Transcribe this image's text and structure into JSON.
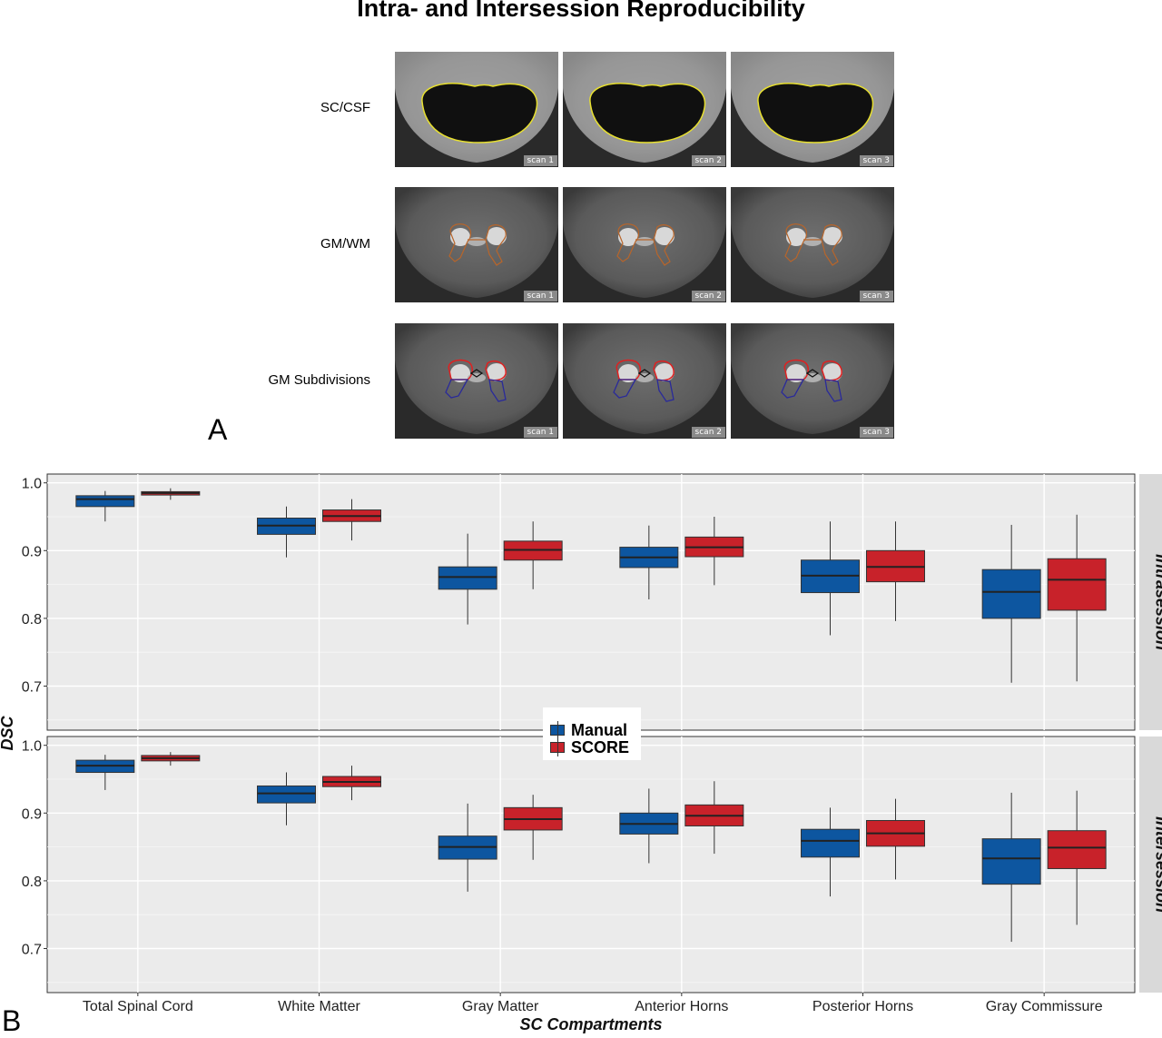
{
  "figure": {
    "title": "Intra- and Intersession Reproducibility",
    "panel_a_letter": "A",
    "panel_b_letter": "B"
  },
  "panel_a": {
    "rows": [
      {
        "label": "SC/CSF",
        "scans": [
          "scan 1",
          "scan 2",
          "scan 3"
        ],
        "contour_colors": [
          "#e8e030"
        ]
      },
      {
        "label": "GM/WM",
        "scans": [
          "scan 1",
          "scan 2",
          "scan 3"
        ],
        "contour_colors": [
          "#b8652a"
        ]
      },
      {
        "label": "GM Subdivisions",
        "scans": [
          "scan 1",
          "scan 2",
          "scan 3"
        ],
        "contour_colors": [
          "#e02020",
          "#2a2a9a",
          "#111111"
        ]
      }
    ]
  },
  "chart_data": {
    "type": "boxplot",
    "xlabel": "SC Compartments",
    "ylabel": "DSC",
    "categories": [
      "Total Spinal Cord",
      "White Matter",
      "Gray Matter",
      "Anterior Horns",
      "Posterior Horns",
      "Gray Commissure"
    ],
    "yticks": [
      "0.7",
      "0.8",
      "0.9",
      "1.0"
    ],
    "ylim": [
      0.635,
      1.013
    ],
    "grid": true,
    "legend": {
      "position": "center-between-facets",
      "entries": [
        "Manual",
        "SCORE"
      ]
    },
    "colors": {
      "Manual": "#0d56a0",
      "SCORE": "#c8222a",
      "panel_bg": "#ebebeb",
      "strip_bg": "#d9d9d9"
    },
    "facets": [
      {
        "name": "Intrasession",
        "series": [
          {
            "name": "Manual",
            "boxes": [
              {
                "min": 0.943,
                "q1": 0.965,
                "median": 0.976,
                "q3": 0.981,
                "max": 0.988
              },
              {
                "min": 0.89,
                "q1": 0.924,
                "median": 0.937,
                "q3": 0.948,
                "max": 0.965
              },
              {
                "min": 0.791,
                "q1": 0.843,
                "median": 0.861,
                "q3": 0.876,
                "max": 0.925
              },
              {
                "min": 0.828,
                "q1": 0.875,
                "median": 0.89,
                "q3": 0.905,
                "max": 0.937
              },
              {
                "min": 0.775,
                "q1": 0.838,
                "median": 0.863,
                "q3": 0.886,
                "max": 0.943
              },
              {
                "min": 0.705,
                "q1": 0.8,
                "median": 0.839,
                "q3": 0.872,
                "max": 0.938
              }
            ]
          },
          {
            "name": "SCORE",
            "boxes": [
              {
                "min": 0.975,
                "q1": 0.982,
                "median": 0.985,
                "q3": 0.987,
                "max": 0.992
              },
              {
                "min": 0.915,
                "q1": 0.943,
                "median": 0.951,
                "q3": 0.96,
                "max": 0.976
              },
              {
                "min": 0.843,
                "q1": 0.886,
                "median": 0.901,
                "q3": 0.914,
                "max": 0.943
              },
              {
                "min": 0.849,
                "q1": 0.891,
                "median": 0.905,
                "q3": 0.92,
                "max": 0.95
              },
              {
                "min": 0.796,
                "q1": 0.854,
                "median": 0.876,
                "q3": 0.9,
                "max": 0.943
              },
              {
                "min": 0.707,
                "q1": 0.812,
                "median": 0.857,
                "q3": 0.888,
                "max": 0.953
              }
            ]
          }
        ]
      },
      {
        "name": "Intersession",
        "series": [
          {
            "name": "Manual",
            "boxes": [
              {
                "min": 0.934,
                "q1": 0.96,
                "median": 0.97,
                "q3": 0.978,
                "max": 0.986
              },
              {
                "min": 0.882,
                "q1": 0.915,
                "median": 0.929,
                "q3": 0.94,
                "max": 0.96
              },
              {
                "min": 0.784,
                "q1": 0.832,
                "median": 0.85,
                "q3": 0.866,
                "max": 0.914
              },
              {
                "min": 0.826,
                "q1": 0.869,
                "median": 0.884,
                "q3": 0.9,
                "max": 0.936
              },
              {
                "min": 0.777,
                "q1": 0.835,
                "median": 0.859,
                "q3": 0.876,
                "max": 0.908
              },
              {
                "min": 0.71,
                "q1": 0.795,
                "median": 0.833,
                "q3": 0.862,
                "max": 0.93
              }
            ]
          },
          {
            "name": "SCORE",
            "boxes": [
              {
                "min": 0.97,
                "q1": 0.977,
                "median": 0.981,
                "q3": 0.985,
                "max": 0.99
              },
              {
                "min": 0.919,
                "q1": 0.939,
                "median": 0.946,
                "q3": 0.954,
                "max": 0.97
              },
              {
                "min": 0.831,
                "q1": 0.875,
                "median": 0.891,
                "q3": 0.908,
                "max": 0.927
              },
              {
                "min": 0.84,
                "q1": 0.881,
                "median": 0.896,
                "q3": 0.912,
                "max": 0.947
              },
              {
                "min": 0.802,
                "q1": 0.851,
                "median": 0.87,
                "q3": 0.889,
                "max": 0.921
              },
              {
                "min": 0.735,
                "q1": 0.818,
                "median": 0.849,
                "q3": 0.874,
                "max": 0.933
              }
            ]
          }
        ]
      }
    ]
  }
}
